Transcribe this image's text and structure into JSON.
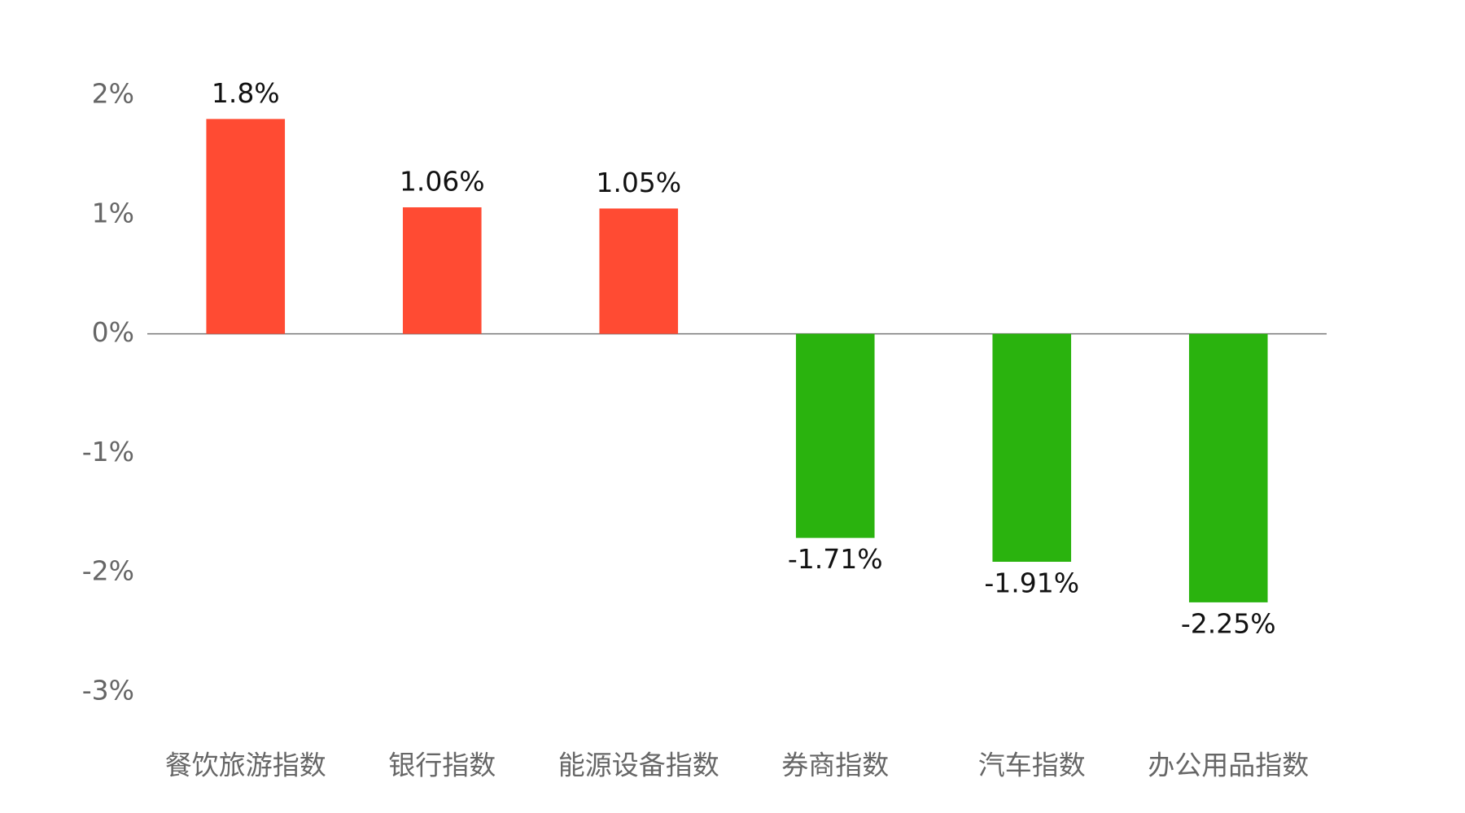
{
  "chart_data": {
    "type": "bar",
    "categories": [
      "餐饮旅游指数",
      "银行指数",
      "能源设备指数",
      "券商指数",
      "汽车指数",
      "办公用品指数"
    ],
    "values": [
      1.8,
      1.06,
      1.05,
      -1.71,
      -1.91,
      -2.25
    ],
    "value_labels": [
      "1.8%",
      "1.06%",
      "1.05%",
      "-1.71%",
      "-1.91%",
      "-2.25%"
    ],
    "positive_color": "#ff4b33",
    "negative_color": "#2ab30e",
    "ylim": [
      -3,
      2
    ],
    "yticks": [
      {
        "value": 2,
        "label": "2%"
      },
      {
        "value": 1,
        "label": "1%"
      },
      {
        "value": 0,
        "label": "0%"
      },
      {
        "value": -1,
        "label": "-1%"
      },
      {
        "value": -2,
        "label": "-2%"
      },
      {
        "value": -3,
        "label": "-3%"
      }
    ],
    "grid": false
  }
}
